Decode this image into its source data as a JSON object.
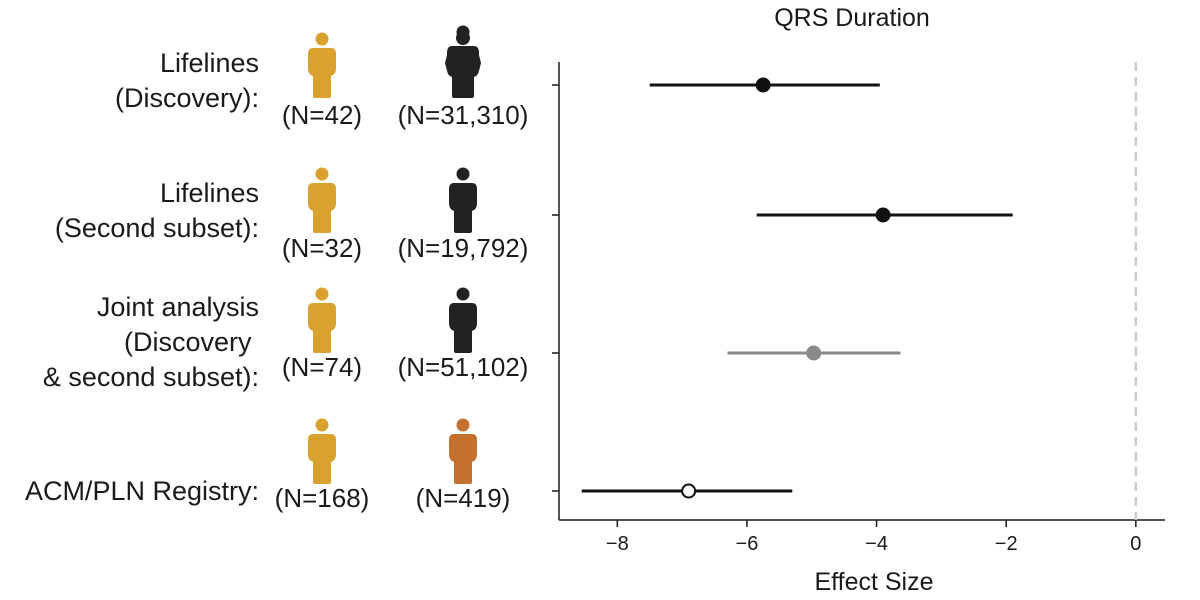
{
  "colors": {
    "carrier": "#D9A22E",
    "general_population": "#222222",
    "patient": "#C4702F",
    "estimate_dark": "#111111",
    "estimate_gray": "#8A8A8A",
    "estimate_open_fill": "#FFFFFF",
    "zero_line": "#CCCCCC"
  },
  "icons": {
    "carrier": "person-icon",
    "general_population": "person-icon",
    "patient": "person-icon"
  },
  "rows": [
    {
      "label_lines": [
        "Lifelines",
        "(Discovery):"
      ],
      "carrier_n": "(N=42)",
      "comparison_n": "(N=31,310)",
      "comparison_group": "general_population"
    },
    {
      "label_lines": [
        "Lifelines",
        "(Second subset):"
      ],
      "carrier_n": "(N=32)",
      "comparison_n": "(N=19,792)",
      "comparison_group": "general_population"
    },
    {
      "label_lines": [
        "Joint analysis",
        "(Discovery ",
        "& second subset):"
      ],
      "carrier_n": "(N=74)",
      "comparison_n": "(N=51,102)",
      "comparison_group": "general_population"
    },
    {
      "label_lines": [
        "ACM/PLN Registry:"
      ],
      "carrier_n": "(N=168)",
      "comparison_n": "(N=419)",
      "comparison_group": "patient"
    }
  ],
  "chart_data": {
    "type": "forest",
    "title": "QRS Duration",
    "xlabel": "Effect Size",
    "ylabel": "",
    "xlim": [
      -8.9,
      0.45
    ],
    "xticks": [
      -8,
      -6,
      -4,
      -2,
      0
    ],
    "xtick_labels": [
      "−8",
      "−6",
      "−4",
      "−2",
      "0"
    ],
    "reference_line": 0,
    "series": [
      {
        "name": "Lifelines (Discovery)",
        "estimate": -5.75,
        "ci_low": -7.5,
        "ci_high": -3.95,
        "marker": "filled",
        "color": "estimate_dark"
      },
      {
        "name": "Lifelines (Second subset)",
        "estimate": -3.9,
        "ci_low": -5.85,
        "ci_high": -1.9,
        "marker": "filled",
        "color": "estimate_dark"
      },
      {
        "name": "Joint analysis (Discovery & second subset)",
        "estimate": -4.97,
        "ci_low": -6.3,
        "ci_high": -3.63,
        "marker": "filled",
        "color": "estimate_gray"
      },
      {
        "name": "ACM/PLN Registry",
        "estimate": -6.9,
        "ci_low": -8.55,
        "ci_high": -5.3,
        "marker": "open",
        "color": "estimate_dark"
      }
    ]
  }
}
